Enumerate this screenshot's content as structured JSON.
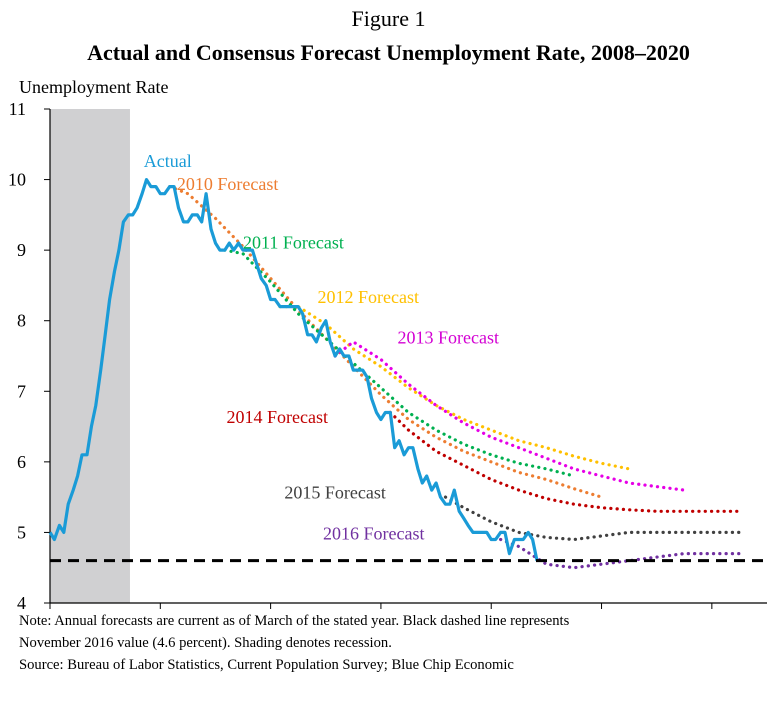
{
  "figure_label": "Figure 1",
  "chart_data": {
    "type": "line",
    "title": "Actual and Consensus Forecast Unemployment Rate, 2008–2020",
    "ylabel": "Unemployment Rate",
    "xlabel": "",
    "xlim": [
      2008,
      2021
    ],
    "ylim": [
      4,
      11
    ],
    "x_ticks": [
      2008,
      2010,
      2012,
      2014,
      2016,
      2018,
      2020
    ],
    "y_ticks": [
      4,
      5,
      6,
      7,
      8,
      9,
      10,
      11
    ],
    "recession": {
      "start": 2008.0,
      "end": 2009.45,
      "color": "#d0d0d2"
    },
    "reference_line": {
      "value": 4.6,
      "style": "dashed",
      "color": "#000000"
    },
    "series": [
      {
        "name": "Actual",
        "color": "#1a9bd7",
        "style": "solid",
        "label_color": "#1a9bd7",
        "x": [
          2008.0,
          2008.08,
          2008.17,
          2008.25,
          2008.33,
          2008.42,
          2008.5,
          2008.58,
          2008.67,
          2008.75,
          2008.83,
          2008.92,
          2009.0,
          2009.08,
          2009.17,
          2009.25,
          2009.33,
          2009.42,
          2009.5,
          2009.58,
          2009.67,
          2009.75,
          2009.83,
          2009.92,
          2010.0,
          2010.08,
          2010.17,
          2010.25,
          2010.33,
          2010.42,
          2010.5,
          2010.58,
          2010.67,
          2010.75,
          2010.83,
          2010.92,
          2011.0,
          2011.08,
          2011.17,
          2011.25,
          2011.33,
          2011.42,
          2011.5,
          2011.58,
          2011.67,
          2011.75,
          2011.83,
          2011.92,
          2012.0,
          2012.08,
          2012.17,
          2012.25,
          2012.33,
          2012.42,
          2012.5,
          2012.58,
          2012.67,
          2012.75,
          2012.83,
          2012.92,
          2013.0,
          2013.08,
          2013.17,
          2013.25,
          2013.33,
          2013.42,
          2013.5,
          2013.58,
          2013.67,
          2013.75,
          2013.83,
          2013.92,
          2014.0,
          2014.08,
          2014.17,
          2014.25,
          2014.33,
          2014.42,
          2014.5,
          2014.58,
          2014.67,
          2014.75,
          2014.83,
          2014.92,
          2015.0,
          2015.08,
          2015.17,
          2015.25,
          2015.33,
          2015.42,
          2015.5,
          2015.58,
          2015.67,
          2015.75,
          2015.83,
          2015.92,
          2016.0,
          2016.08,
          2016.17,
          2016.25,
          2016.33,
          2016.42,
          2016.5,
          2016.58,
          2016.67,
          2016.75,
          2016.83
        ],
        "y": [
          5.0,
          4.9,
          5.1,
          5.0,
          5.4,
          5.6,
          5.8,
          6.1,
          6.1,
          6.5,
          6.8,
          7.3,
          7.8,
          8.3,
          8.7,
          9.0,
          9.4,
          9.5,
          9.5,
          9.6,
          9.8,
          10.0,
          9.9,
          9.9,
          9.8,
          9.8,
          9.9,
          9.9,
          9.6,
          9.4,
          9.4,
          9.5,
          9.5,
          9.4,
          9.8,
          9.3,
          9.1,
          9.0,
          9.0,
          9.1,
          9.0,
          9.1,
          9.0,
          9.0,
          9.0,
          8.8,
          8.6,
          8.5,
          8.3,
          8.3,
          8.2,
          8.2,
          8.2,
          8.2,
          8.2,
          8.1,
          7.8,
          7.8,
          7.7,
          7.9,
          8.0,
          7.7,
          7.5,
          7.6,
          7.5,
          7.5,
          7.3,
          7.3,
          7.3,
          7.2,
          6.9,
          6.7,
          6.6,
          6.7,
          6.7,
          6.2,
          6.3,
          6.1,
          6.2,
          6.2,
          5.9,
          5.7,
          5.8,
          5.6,
          5.7,
          5.5,
          5.4,
          5.4,
          5.6,
          5.3,
          5.2,
          5.1,
          5.0,
          5.0,
          5.0,
          5.0,
          4.9,
          4.9,
          5.0,
          5.0,
          4.7,
          4.9,
          4.9,
          4.9,
          5.0,
          4.9,
          4.6
        ]
      },
      {
        "name": "2010 Forecast",
        "color": "#ed7d31",
        "style": "dotted",
        "label_color": "#ed7d31",
        "x": [
          2010.17,
          2010.5,
          2011.0,
          2011.5,
          2012.0,
          2012.5,
          2013.0,
          2013.5,
          2014.0,
          2014.5,
          2015.0,
          2015.5,
          2016.0,
          2016.5,
          2017.0,
          2017.5,
          2018.0
        ],
        "y": [
          9.9,
          9.8,
          9.45,
          9.05,
          8.6,
          8.15,
          7.75,
          7.35,
          6.95,
          6.6,
          6.35,
          6.15,
          6.0,
          5.85,
          5.75,
          5.62,
          5.5
        ]
      },
      {
        "name": "2011 Forecast",
        "color": "#00b050",
        "style": "dotted",
        "label_color": "#00b050",
        "x": [
          2011.17,
          2011.5,
          2012.0,
          2012.5,
          2013.0,
          2013.5,
          2014.0,
          2014.5,
          2015.0,
          2015.5,
          2016.0,
          2016.5,
          2017.0,
          2017.5
        ],
        "y": [
          9.0,
          8.95,
          8.55,
          8.1,
          7.75,
          7.4,
          7.05,
          6.7,
          6.45,
          6.25,
          6.1,
          5.98,
          5.9,
          5.8
        ]
      },
      {
        "name": "2012 Forecast",
        "color": "#ffc000",
        "style": "dotted",
        "label_color": "#ffc000",
        "x": [
          2012.17,
          2012.5,
          2013.0,
          2013.5,
          2014.0,
          2014.5,
          2015.0,
          2015.5,
          2016.0,
          2016.5,
          2017.0,
          2017.5,
          2018.0,
          2018.5
        ],
        "y": [
          8.2,
          8.2,
          7.95,
          7.6,
          7.35,
          7.05,
          6.8,
          6.6,
          6.45,
          6.3,
          6.2,
          6.08,
          5.98,
          5.9
        ]
      },
      {
        "name": "2013 Forecast",
        "color": "#e600e6",
        "style": "dotted",
        "label_color": "#d300d3",
        "x": [
          2013.17,
          2013.5,
          2014.0,
          2014.5,
          2015.0,
          2015.5,
          2016.0,
          2016.5,
          2017.0,
          2017.5,
          2018.0,
          2018.5,
          2019.0,
          2019.5
        ],
        "y": [
          7.5,
          7.7,
          7.45,
          7.1,
          6.8,
          6.55,
          6.35,
          6.2,
          6.05,
          5.9,
          5.8,
          5.7,
          5.65,
          5.6
        ]
      },
      {
        "name": "2014 Forecast",
        "color": "#c00000",
        "style": "dotted",
        "label_color": "#c00000",
        "x": [
          2014.17,
          2014.5,
          2015.0,
          2015.5,
          2016.0,
          2016.5,
          2017.0,
          2017.5,
          2018.0,
          2018.5,
          2019.0,
          2019.5,
          2020.0,
          2020.5
        ],
        "y": [
          6.7,
          6.45,
          6.15,
          5.95,
          5.75,
          5.6,
          5.48,
          5.4,
          5.35,
          5.32,
          5.3,
          5.3,
          5.3,
          5.3
        ]
      },
      {
        "name": "2015 Forecast",
        "color": "#404040",
        "style": "dotted",
        "label_color": "#404040",
        "x": [
          2015.17,
          2015.5,
          2016.0,
          2016.5,
          2017.0,
          2017.5,
          2018.0,
          2018.5,
          2019.0,
          2019.5,
          2020.0,
          2020.5
        ],
        "y": [
          5.5,
          5.35,
          5.15,
          5.0,
          4.93,
          4.9,
          4.95,
          5.0,
          5.0,
          5.0,
          5.0,
          5.0
        ]
      },
      {
        "name": "2016 Forecast",
        "color": "#7030a0",
        "style": "dotted",
        "label_color": "#7030a0",
        "x": [
          2016.17,
          2016.5,
          2017.0,
          2017.5,
          2018.0,
          2018.5,
          2019.0,
          2019.5,
          2020.0,
          2020.5
        ],
        "y": [
          4.9,
          4.8,
          4.55,
          4.5,
          4.55,
          4.6,
          4.65,
          4.7,
          4.7,
          4.7
        ]
      }
    ],
    "series_labels": [
      {
        "text": "Actual",
        "x": 2009.7,
        "y": 10.18,
        "color": "#1a9bd7"
      },
      {
        "text": "2010 Forecast",
        "x": 2010.3,
        "y": 9.85,
        "color": "#ed7d31"
      },
      {
        "text": "2011 Forecast",
        "x": 2011.5,
        "y": 9.02,
        "color": "#00b050"
      },
      {
        "text": "2012 Forecast",
        "x": 2012.85,
        "y": 8.25,
        "color": "#ffc000"
      },
      {
        "text": "2013 Forecast",
        "x": 2014.3,
        "y": 7.68,
        "color": "#d300d3"
      },
      {
        "text": "2014 Forecast",
        "x": 2011.2,
        "y": 6.55,
        "color": "#c00000"
      },
      {
        "text": "2015 Forecast",
        "x": 2012.25,
        "y": 5.48,
        "color": "#404040"
      },
      {
        "text": "2016 Forecast",
        "x": 2012.95,
        "y": 4.9,
        "color": "#7030a0"
      }
    ]
  },
  "notes": [
    "Note: Annual forecasts are current as of March of the stated year. Black dashed line represents",
    "November 2016 value (4.6 percent). Shading denotes recession.",
    "Source: Bureau of Labor Statistics, Current Population Survey; Blue Chip Economic"
  ]
}
